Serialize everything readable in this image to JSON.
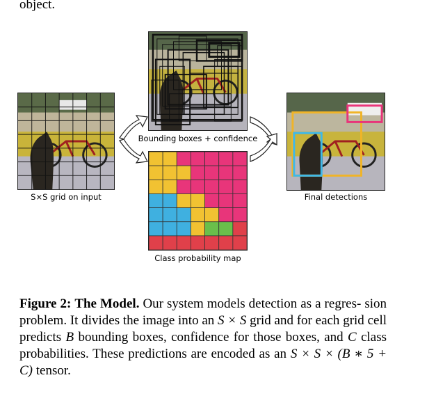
{
  "top_text": "object.",
  "labels": {
    "grid_input": "S×S grid on input",
    "bounding_boxes": "Bounding boxes + confidence",
    "class_map": "Class probability map",
    "final_detections": "Final detections"
  },
  "caption": {
    "fig_label": "Figure 2:",
    "fig_title": "The Model.",
    "line1_text": "Our system models detection as a regres-",
    "line2_pre": "sion problem. It divides the image into an ",
    "line2_math": "S × S",
    "line2_post": " grid and for each",
    "line3_pre": "grid cell predicts ",
    "line3_math": "B",
    "line3_post": " bounding boxes, confidence for those boxes,",
    "line4_pre": "and ",
    "line4_math": "C",
    "line4_post": " class probabilities.  These predictions are encoded as an",
    "line5_math": "S × S × (B ∗ 5 + C)",
    "line5_post": " tensor."
  },
  "colors": {
    "dog_box": "#3fb8e8",
    "bike_box": "#f0b428",
    "car_box": "#e8357a",
    "class_yellow": "#f1c232",
    "class_pink": "#e8357a",
    "class_blue": "#3fb0e0",
    "class_green": "#6abf4b",
    "class_red": "#e0404a"
  },
  "class_map_rows": [
    [
      "yellow",
      "yellow",
      "pink",
      "pink",
      "pink",
      "pink",
      "pink"
    ],
    [
      "yellow",
      "yellow",
      "yellow",
      "pink",
      "pink",
      "pink",
      "pink"
    ],
    [
      "yellow",
      "yellow",
      "pink",
      "pink",
      "pink",
      "pink",
      "pink"
    ],
    [
      "blue",
      "blue",
      "yellow",
      "yellow",
      "pink",
      "pink",
      "pink"
    ],
    [
      "blue",
      "blue",
      "blue",
      "yellow",
      "yellow",
      "pink",
      "pink"
    ],
    [
      "blue",
      "blue",
      "blue",
      "yellow",
      "green",
      "green",
      "red"
    ],
    [
      "red",
      "red",
      "red",
      "red",
      "red",
      "red",
      "red"
    ]
  ]
}
